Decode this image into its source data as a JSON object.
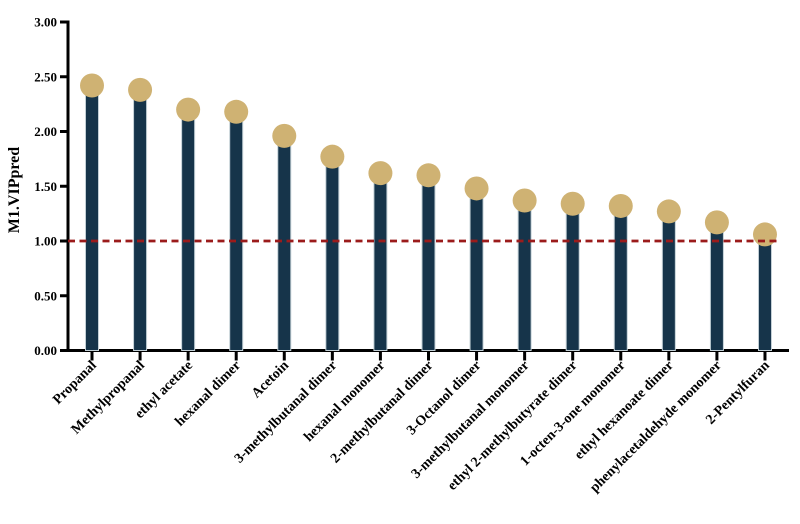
{
  "chart_data": {
    "type": "bar",
    "title": "",
    "xlabel": "",
    "ylabel": "M1.VIPpred",
    "categories": [
      "Propanal",
      "Methylpropanal",
      "ethyl acetate",
      "hexanal dimer",
      "Acetoin",
      "3-methylbutanal dimer",
      "hexanal monomer",
      "2-methylbutanal dimer",
      "3-Octanol dimer",
      "3-methylbutanal monomer",
      "ethyl 2-methylbutyrate dimer",
      "1-octen-3-one monomer",
      "ethyl hexanoate dimer",
      "phenylacetaldehyde monomer",
      "2-Pentylfuran"
    ],
    "values": [
      2.42,
      2.38,
      2.2,
      2.18,
      1.96,
      1.77,
      1.62,
      1.6,
      1.48,
      1.37,
      1.34,
      1.32,
      1.27,
      1.17,
      1.06
    ],
    "ylim": [
      0,
      3
    ],
    "ytick_values": [
      0,
      0.5,
      1.0,
      1.5,
      2.0,
      2.5,
      3.0
    ],
    "ytick_labels": [
      "0.00",
      "0.50",
      "1.00",
      "1.50",
      "2.00",
      "2.50",
      "3.00"
    ],
    "threshold_value": 1.0,
    "threshold_style": "dashed",
    "grid": false,
    "legend": "none",
    "marker_shape": "circle",
    "colors": {
      "bar": "#16344a",
      "bar_edge": "#c3d0d6",
      "marker": "#cfb273",
      "threshold": "#9b1b1b",
      "axis": "#000000",
      "background": "#ffffff"
    }
  }
}
